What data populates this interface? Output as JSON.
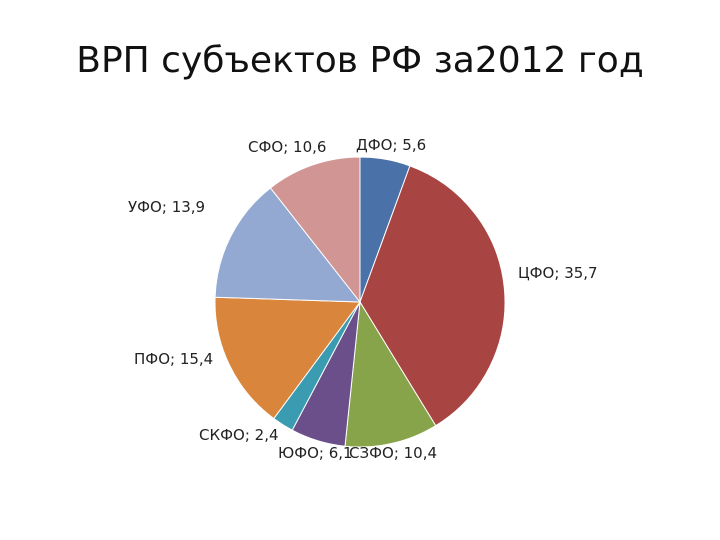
{
  "chart_data": {
    "type": "pie",
    "title": "ВРП субъектов РФ за2012 год",
    "categories": [
      "ДФО",
      "ЦФО",
      "СЗФО",
      "ЮФО",
      "СКФО",
      "ПФО",
      "УФО",
      "СФО"
    ],
    "values": [
      5.6,
      35.7,
      10.4,
      6.1,
      2.4,
      15.4,
      13.9,
      10.6
    ],
    "value_labels": [
      "5,6",
      "35,7",
      "10,4",
      "6,1",
      "2,4",
      "15,4",
      "13,9",
      "10,6"
    ],
    "label_separator": "; ",
    "colors": [
      "#4a72a8",
      "#a84442",
      "#88a44a",
      "#6a4f8a",
      "#3b9bb0",
      "#d9853c",
      "#93a9d1",
      "#d19593"
    ]
  }
}
